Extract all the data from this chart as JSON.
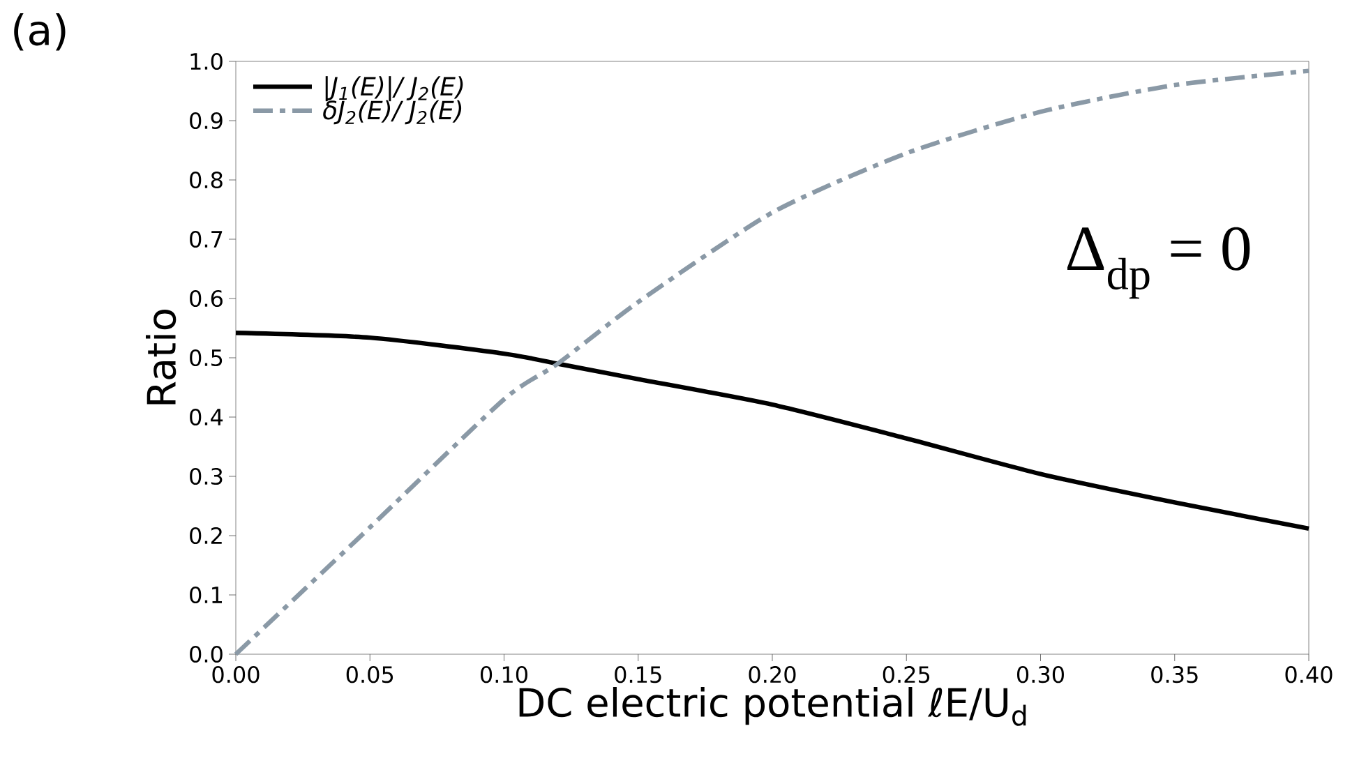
{
  "chart_data": {
    "type": "line",
    "title": "(a)",
    "xlabel": "DC electric potential ℓE/U$_{d}$",
    "ylabel": "Ratio",
    "annotations": [
      "Δ$_{dp}$ = 0"
    ],
    "x": [
      0,
      0.05,
      0.1,
      0.12,
      0.15,
      0.2,
      0.25,
      0.3,
      0.35,
      0.4
    ],
    "series": [
      {
        "name": "|J$_{1}$(E)|/ J$_{2}$(E)",
        "color": "#000000",
        "line_style": "solid",
        "values": [
          0.542,
          0.534,
          0.507,
          0.49,
          0.464,
          0.421,
          0.364,
          0.304,
          0.256,
          0.212
        ]
      },
      {
        "name": "δJ$_{2}$(E)/ J$_{2}$(E)",
        "color": "#8a99a6",
        "line_style": "dashdot",
        "values": [
          0,
          0.214,
          0.43,
          0.49,
          0.594,
          0.745,
          0.845,
          0.915,
          0.96,
          0.984
        ]
      }
    ],
    "xlim": [
      0,
      0.4
    ],
    "ylim": [
      0,
      1
    ],
    "xticks": [
      {
        "value": 0,
        "label": "0.00"
      },
      {
        "value": 0.05,
        "label": "0.05"
      },
      {
        "value": 0.1,
        "label": "0.10"
      },
      {
        "value": 0.15,
        "label": "0.15"
      },
      {
        "value": 0.2,
        "label": "0.20"
      },
      {
        "value": 0.25,
        "label": "0.25"
      },
      {
        "value": 0.3,
        "label": "0.30"
      },
      {
        "value": 0.35,
        "label": "0.35"
      },
      {
        "value": 0.4,
        "label": "0.40"
      }
    ],
    "yticks": [
      {
        "value": 0,
        "label": "0.0"
      },
      {
        "value": 0.1,
        "label": "0.1"
      },
      {
        "value": 0.2,
        "label": "0.2"
      },
      {
        "value": 0.3,
        "label": "0.3"
      },
      {
        "value": 0.4,
        "label": "0.4"
      },
      {
        "value": 0.5,
        "label": "0.5"
      },
      {
        "value": 0.6,
        "label": "0.6"
      },
      {
        "value": 0.7,
        "label": "0.7"
      },
      {
        "value": 0.8,
        "label": "0.8"
      },
      {
        "value": 0.9,
        "label": "0.9"
      },
      {
        "value": 1,
        "label": "1.0"
      }
    ],
    "grid": false,
    "legend": "top left"
  }
}
